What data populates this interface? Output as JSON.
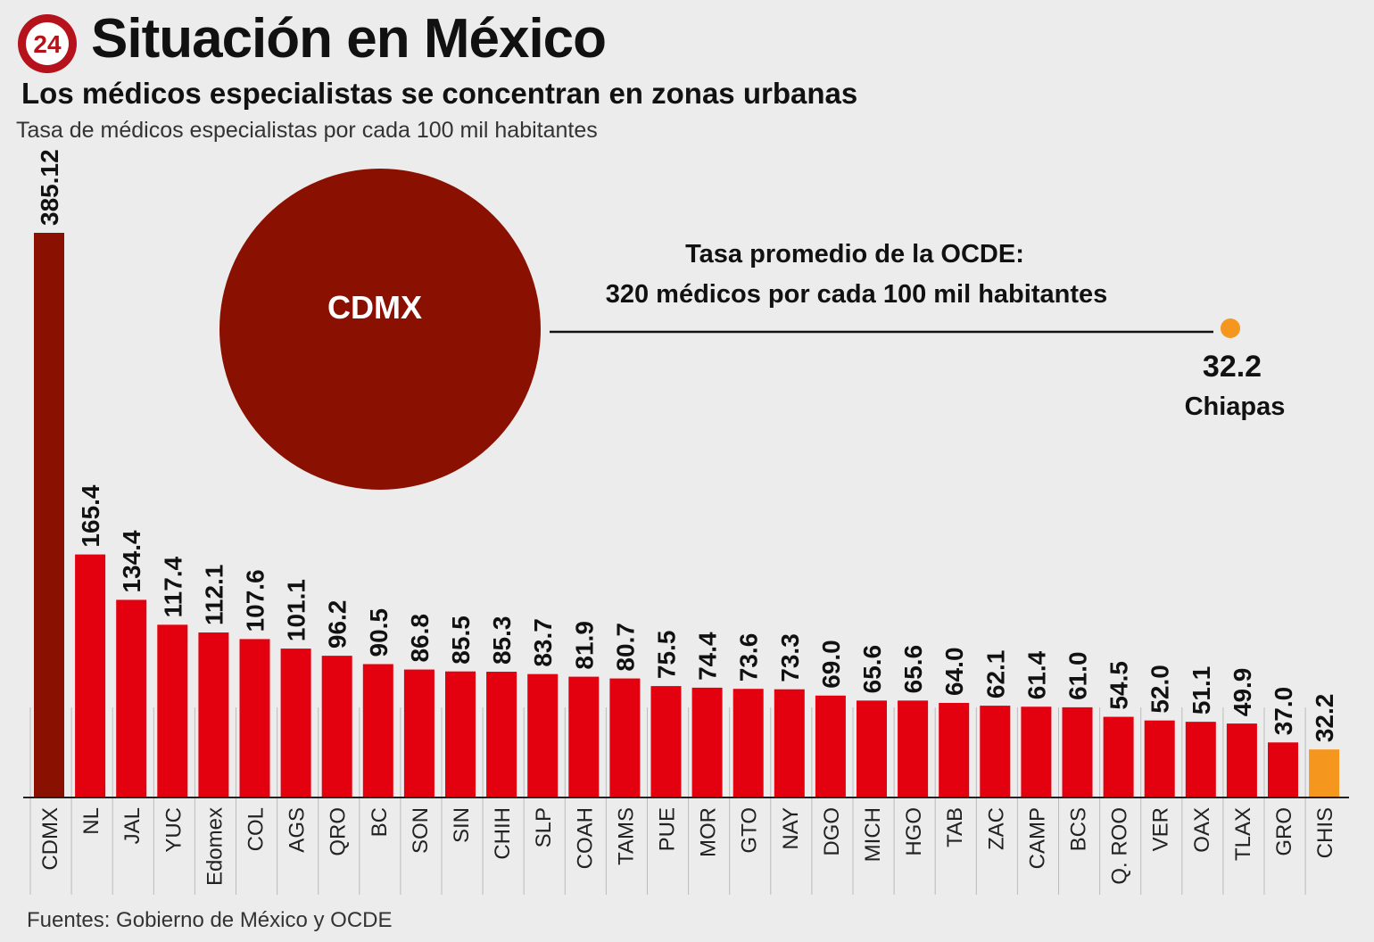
{
  "header": {
    "logo_text": "24",
    "title": "Situación en México",
    "subtitle": "Los médicos especialistas se concentran en zonas urbanas",
    "caption": "Tasa de médicos especialistas por cada 100 mil habitantes"
  },
  "footer": {
    "source": "Fuentes: Gobierno de México y OCDE"
  },
  "annotation": {
    "circle_label": "CDMX",
    "ocde_line1": "Tasa promedio de la OCDE:",
    "ocde_line2": "320 médicos por cada 100 mil habitantes",
    "chiapas_value": "32.2",
    "chiapas_label": "Chiapas"
  },
  "colors": {
    "cdmx": "#8a1002",
    "default": "#e3000f",
    "chis": "#f5961e",
    "background": "#ececec"
  },
  "chart_data": {
    "type": "bar",
    "categories": [
      "CDMX",
      "NL",
      "JAL",
      "YUC",
      "Edomex",
      "COL",
      "AGS",
      "QRO",
      "BC",
      "SON",
      "SIN",
      "CHIH",
      "SLP",
      "COAH",
      "TAMS",
      "PUE",
      "MOR",
      "GTO",
      "NAY",
      "DGO",
      "MICH",
      "HGO",
      "TAB",
      "ZAC",
      "CAMP",
      "BCS",
      "Q. ROO",
      "VER",
      "OAX",
      "TLAX",
      "GRO",
      "CHIS"
    ],
    "values": [
      385.12,
      165.4,
      134.4,
      117.4,
      112.1,
      107.6,
      101.1,
      96.2,
      90.5,
      86.8,
      85.5,
      85.3,
      83.7,
      81.9,
      80.7,
      75.5,
      74.4,
      73.6,
      73.3,
      69.0,
      65.6,
      65.6,
      64.0,
      62.1,
      61.4,
      61.0,
      54.5,
      52.0,
      51.1,
      49.9,
      37.0,
      32.2
    ],
    "labels": [
      "385.12",
      "165.4",
      "134.4",
      "117.4",
      "112.1",
      "107.6",
      "101.1",
      "96.2",
      "90.5",
      "86.8",
      "85.5",
      "85.3",
      "83.7",
      "81.9",
      "80.7",
      "75.5",
      "74.4",
      "73.6",
      "73.3",
      "69.0",
      "65.6",
      "65.6",
      "64.0",
      "62.1",
      "61.4",
      "61.0",
      "54.5",
      "52.0",
      "51.1",
      "49.9",
      "37.0",
      "32.2"
    ],
    "title": "Situación en México",
    "xlabel": "",
    "ylabel": "",
    "ylim": [
      0,
      400
    ],
    "grid": false,
    "legend": "none"
  }
}
